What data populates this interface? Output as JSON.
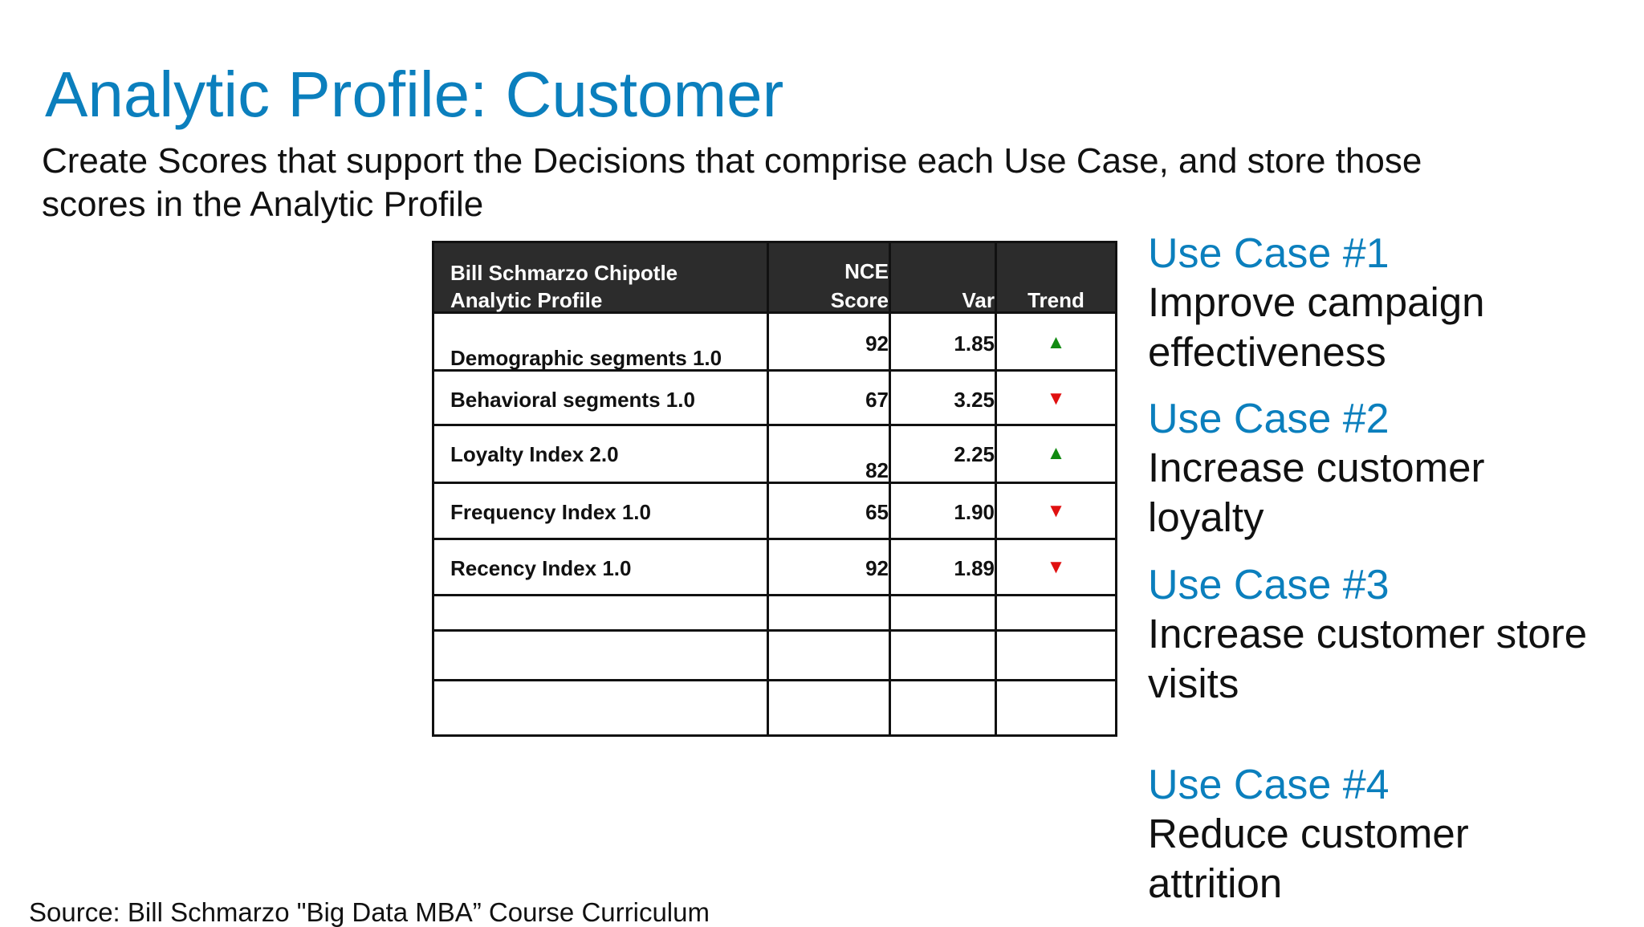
{
  "slide": {
    "title": "Analytic Profile: Customer",
    "subtitle": "Create Scores that support the Decisions that comprise each Use Case, and store those scores in the Analytic Profile",
    "source": "Source: Bill Schmarzo \"Big Data MBA” Course Curriculum"
  },
  "table": {
    "header": {
      "name_line1": "Bill Schmarzo Chipotle",
      "name_line2": "Analytic Profile",
      "score_line1": "NCE",
      "score_line2": "Score",
      "var": "Var",
      "trend": "Trend"
    },
    "rows": [
      {
        "name": "Demographic segments 1.0",
        "score": "92",
        "var": "1.85",
        "trend": "▲",
        "trend_dir": "up"
      },
      {
        "name": "Behavioral segments 1.0",
        "score": "67",
        "var": "3.25",
        "trend": "▼",
        "trend_dir": "down"
      },
      {
        "name": "Loyalty Index 2.0",
        "score": "82",
        "var": "2.25",
        "trend": "▲",
        "trend_dir": "up"
      },
      {
        "name": "Frequency Index 1.0",
        "score": "65",
        "var": "1.90",
        "trend": "▼",
        "trend_dir": "down"
      },
      {
        "name": "Recency Index 1.0",
        "score": "92",
        "var": "1.89",
        "trend": "▼",
        "trend_dir": "down"
      }
    ],
    "colors": {
      "header_bg": "#2c2c2c",
      "up": "#118a11",
      "down": "#e01010"
    }
  },
  "use_cases": [
    {
      "heading": "Use Case #1",
      "line1": "Improve campaign",
      "line2": "effectiveness"
    },
    {
      "heading": "Use Case #2",
      "line1": "Increase customer",
      "line2": "loyalty"
    },
    {
      "heading": "Use Case #3",
      "line1": "Increase customer store",
      "line2": "visits"
    },
    {
      "heading": "Use Case #4",
      "line1": "Reduce customer",
      "line2": "attrition"
    }
  ],
  "accent_color": "#0b7fbd"
}
